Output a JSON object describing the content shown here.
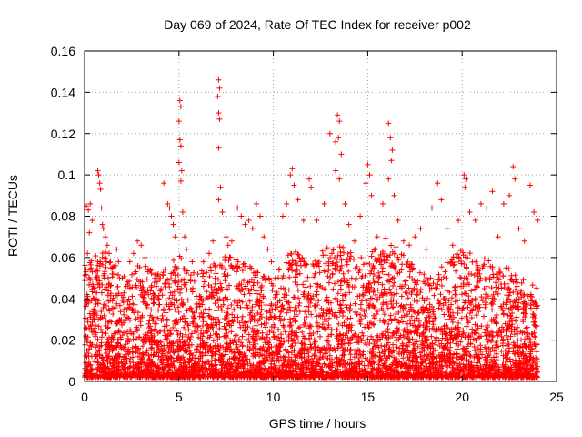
{
  "chart_data": {
    "type": "scatter",
    "title": "Day 069 of 2024, Rate Of TEC Index for receiver p002",
    "xlabel": "GPS time / hours",
    "ylabel": "ROTI / TECUs",
    "xlim": [
      0,
      25
    ],
    "ylim": [
      0,
      0.16
    ],
    "xticks": [
      0,
      5,
      10,
      15,
      20,
      25
    ],
    "yticks": [
      0,
      0.02,
      0.04,
      0.06,
      0.08,
      0.1,
      0.12,
      0.14,
      0.16
    ],
    "xtick_labels": [
      "0",
      "5",
      "10",
      "15",
      "20",
      "25"
    ],
    "ytick_labels": [
      "0",
      "0.02",
      "0.04",
      "0.06",
      "0.08",
      "0.1",
      "0.12",
      "0.14",
      "0.16"
    ],
    "grid": true,
    "marker": "plus",
    "color": "#ff0000",
    "points": [
      [
        0.1,
        0.085
      ],
      [
        0.2,
        0.083
      ],
      [
        0.3,
        0.086
      ],
      [
        0.4,
        0.078
      ],
      [
        0.25,
        0.072
      ],
      [
        0.15,
        0.062
      ],
      [
        0.35,
        0.055
      ],
      [
        0.3,
        0.049
      ],
      [
        0.45,
        0.046
      ],
      [
        0.5,
        0.04
      ],
      [
        0.2,
        0.038
      ],
      [
        0.7,
        0.102
      ],
      [
        0.75,
        0.1
      ],
      [
        0.8,
        0.096
      ],
      [
        0.85,
        0.093
      ],
      [
        0.9,
        0.084
      ],
      [
        0.95,
        0.076
      ],
      [
        1.0,
        0.074
      ],
      [
        1.1,
        0.07
      ],
      [
        1.2,
        0.066
      ],
      [
        1.3,
        0.062
      ],
      [
        1.15,
        0.058
      ],
      [
        1.4,
        0.055
      ],
      [
        1.5,
        0.052
      ],
      [
        1.7,
        0.064
      ],
      [
        1.8,
        0.058
      ],
      [
        2.0,
        0.05
      ],
      [
        2.2,
        0.046
      ],
      [
        2.4,
        0.058
      ],
      [
        2.6,
        0.062
      ],
      [
        2.8,
        0.068
      ],
      [
        3.0,
        0.066
      ],
      [
        3.2,
        0.06
      ],
      [
        3.5,
        0.054
      ],
      [
        3.7,
        0.048
      ],
      [
        3.9,
        0.052
      ],
      [
        4.2,
        0.096
      ],
      [
        4.4,
        0.086
      ],
      [
        4.5,
        0.084
      ],
      [
        4.6,
        0.08
      ],
      [
        4.7,
        0.076
      ],
      [
        4.8,
        0.07
      ],
      [
        5.05,
        0.136
      ],
      [
        5.1,
        0.133
      ],
      [
        5.0,
        0.126
      ],
      [
        5.05,
        0.117
      ],
      [
        5.1,
        0.114
      ],
      [
        5.0,
        0.106
      ],
      [
        5.15,
        0.102
      ],
      [
        5.1,
        0.097
      ],
      [
        5.2,
        0.082
      ],
      [
        5.3,
        0.07
      ],
      [
        5.4,
        0.064
      ],
      [
        5.7,
        0.058
      ],
      [
        6.0,
        0.052
      ],
      [
        6.3,
        0.058
      ],
      [
        6.6,
        0.062
      ],
      [
        6.8,
        0.068
      ],
      [
        7.1,
        0.146
      ],
      [
        7.15,
        0.142
      ],
      [
        7.05,
        0.138
      ],
      [
        7.1,
        0.13
      ],
      [
        7.15,
        0.127
      ],
      [
        7.1,
        0.113
      ],
      [
        7.2,
        0.094
      ],
      [
        7.1,
        0.088
      ],
      [
        7.3,
        0.082
      ],
      [
        7.5,
        0.07
      ],
      [
        7.6,
        0.066
      ],
      [
        7.8,
        0.068
      ],
      [
        8.1,
        0.084
      ],
      [
        8.3,
        0.08
      ],
      [
        8.5,
        0.076
      ],
      [
        8.7,
        0.078
      ],
      [
        8.9,
        0.074
      ],
      [
        9.1,
        0.086
      ],
      [
        9.3,
        0.08
      ],
      [
        9.5,
        0.07
      ],
      [
        9.7,
        0.064
      ],
      [
        9.9,
        0.058
      ],
      [
        10.1,
        0.05
      ],
      [
        10.3,
        0.054
      ],
      [
        10.5,
        0.08
      ],
      [
        10.7,
        0.086
      ],
      [
        10.9,
        0.1
      ],
      [
        11.0,
        0.103
      ],
      [
        11.1,
        0.095
      ],
      [
        11.3,
        0.088
      ],
      [
        11.6,
        0.078
      ],
      [
        11.9,
        0.098
      ],
      [
        12.0,
        0.094
      ],
      [
        12.3,
        0.078
      ],
      [
        12.7,
        0.086
      ],
      [
        13.0,
        0.12
      ],
      [
        13.3,
        0.116
      ],
      [
        13.4,
        0.129
      ],
      [
        13.5,
        0.126
      ],
      [
        13.45,
        0.118
      ],
      [
        13.6,
        0.11
      ],
      [
        13.3,
        0.102
      ],
      [
        13.5,
        0.098
      ],
      [
        13.8,
        0.086
      ],
      [
        14.0,
        0.076
      ],
      [
        14.3,
        0.068
      ],
      [
        14.6,
        0.08
      ],
      [
        14.9,
        0.096
      ],
      [
        15.0,
        0.105
      ],
      [
        15.1,
        0.1
      ],
      [
        15.2,
        0.09
      ],
      [
        15.5,
        0.07
      ],
      [
        15.8,
        0.086
      ],
      [
        16.1,
        0.125
      ],
      [
        16.2,
        0.118
      ],
      [
        16.3,
        0.112
      ],
      [
        16.25,
        0.107
      ],
      [
        16.1,
        0.098
      ],
      [
        16.4,
        0.09
      ],
      [
        16.6,
        0.078
      ],
      [
        16.9,
        0.068
      ],
      [
        17.2,
        0.066
      ],
      [
        17.5,
        0.07
      ],
      [
        17.8,
        0.074
      ],
      [
        18.1,
        0.064
      ],
      [
        18.4,
        0.084
      ],
      [
        18.7,
        0.096
      ],
      [
        18.9,
        0.088
      ],
      [
        19.2,
        0.074
      ],
      [
        19.5,
        0.066
      ],
      [
        19.8,
        0.078
      ],
      [
        20.1,
        0.1
      ],
      [
        20.2,
        0.098
      ],
      [
        20.15,
        0.094
      ],
      [
        20.4,
        0.082
      ],
      [
        20.7,
        0.078
      ],
      [
        21.0,
        0.086
      ],
      [
        21.3,
        0.084
      ],
      [
        21.6,
        0.092
      ],
      [
        21.9,
        0.07
      ],
      [
        22.2,
        0.086
      ],
      [
        22.5,
        0.09
      ],
      [
        22.7,
        0.104
      ],
      [
        22.8,
        0.098
      ],
      [
        23.0,
        0.074
      ],
      [
        23.3,
        0.068
      ],
      [
        23.6,
        0.095
      ],
      [
        23.8,
        0.082
      ],
      [
        24.0,
        0.078
      ]
    ],
    "dense_band": {
      "x_range": [
        0,
        24
      ],
      "y_ceiling_profile": [
        [
          0,
          0.055
        ],
        [
          1,
          0.062
        ],
        [
          2,
          0.05
        ],
        [
          3,
          0.055
        ],
        [
          4,
          0.05
        ],
        [
          5,
          0.06
        ],
        [
          6,
          0.05
        ],
        [
          7,
          0.058
        ],
        [
          8,
          0.06
        ],
        [
          9,
          0.052
        ],
        [
          10,
          0.048
        ],
        [
          11,
          0.064
        ],
        [
          12,
          0.055
        ],
        [
          13,
          0.066
        ],
        [
          14,
          0.062
        ],
        [
          15,
          0.058
        ],
        [
          16,
          0.07
        ],
        [
          17,
          0.058
        ],
        [
          18,
          0.05
        ],
        [
          19,
          0.055
        ],
        [
          20,
          0.062
        ],
        [
          21,
          0.058
        ],
        [
          22,
          0.055
        ],
        [
          23,
          0.05
        ],
        [
          24,
          0.045
        ]
      ],
      "point_count": 5200
    }
  }
}
